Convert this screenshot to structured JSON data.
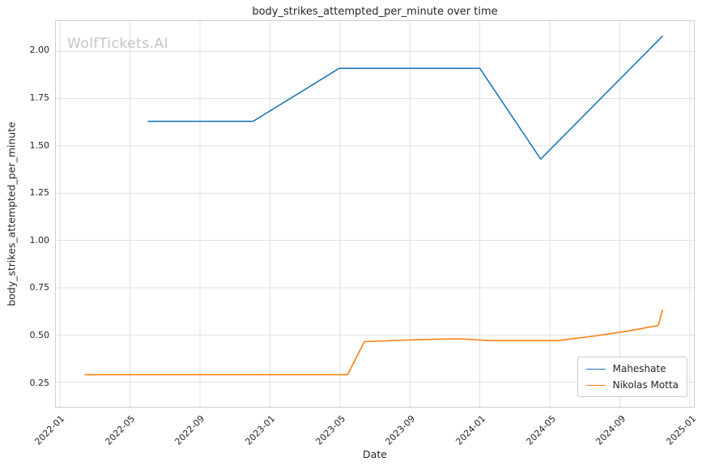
{
  "chart_data": {
    "type": "line",
    "title": "body_strikes_attempted_per_minute over time",
    "xlabel": "Date",
    "ylabel": "body_strikes_attempted_per_minute",
    "watermark": "WolfTickets.AI",
    "grid": true,
    "legend_position": "lower right",
    "grid_color": "#e0e0e0",
    "xlim": [
      2021.98,
      2025.02
    ],
    "ylim": [
      0.12,
      2.16
    ],
    "x_ticks": [
      {
        "value": 2022.0,
        "label": "2022-01"
      },
      {
        "value": 2022.3333,
        "label": "2022-05"
      },
      {
        "value": 2022.6667,
        "label": "2022-09"
      },
      {
        "value": 2023.0,
        "label": "2023-01"
      },
      {
        "value": 2023.3333,
        "label": "2023-05"
      },
      {
        "value": 2023.6667,
        "label": "2023-09"
      },
      {
        "value": 2024.0,
        "label": "2024-01"
      },
      {
        "value": 2024.3333,
        "label": "2024-05"
      },
      {
        "value": 2024.6667,
        "label": "2024-09"
      },
      {
        "value": 2025.0,
        "label": "2025-01"
      }
    ],
    "y_ticks": [
      {
        "value": 0.25,
        "label": "0.25"
      },
      {
        "value": 0.5,
        "label": "0.50"
      },
      {
        "value": 0.75,
        "label": "0.75"
      },
      {
        "value": 1.0,
        "label": "1.00"
      },
      {
        "value": 1.25,
        "label": "1.25"
      },
      {
        "value": 1.5,
        "label": "1.50"
      },
      {
        "value": 1.75,
        "label": "1.75"
      },
      {
        "value": 2.0,
        "label": "2.00"
      }
    ],
    "series": [
      {
        "name": "Maheshate",
        "color": "#1f77b4",
        "points": [
          [
            2022.42,
            1.63
          ],
          [
            2022.92,
            1.63
          ],
          [
            2023.33,
            1.91
          ],
          [
            2024.0,
            1.91
          ],
          [
            2024.29,
            1.43
          ],
          [
            2024.87,
            2.08
          ]
        ]
      },
      {
        "name": "Nikolas Motta",
        "color": "#ff7f0e",
        "points": [
          [
            2022.12,
            0.29
          ],
          [
            2023.37,
            0.29
          ],
          [
            2023.45,
            0.465
          ],
          [
            2023.7,
            0.475
          ],
          [
            2023.9,
            0.48
          ],
          [
            2024.05,
            0.47
          ],
          [
            2024.37,
            0.47
          ],
          [
            2024.55,
            0.495
          ],
          [
            2024.7,
            0.52
          ],
          [
            2024.85,
            0.55
          ],
          [
            2024.87,
            0.63
          ]
        ]
      }
    ]
  }
}
